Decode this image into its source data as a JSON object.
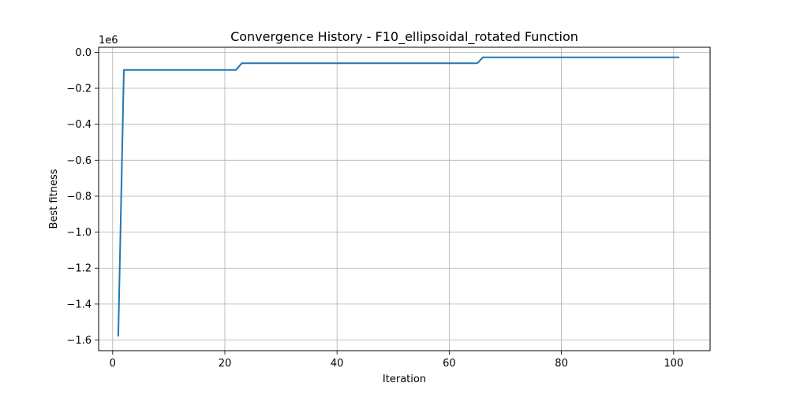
{
  "chart_data": {
    "type": "line",
    "title": "Convergence History - F10_ellipsoidal_rotated Function",
    "xlabel": "Iteration",
    "ylabel": "Best fitness",
    "y_offset_label": "1e6",
    "xlim": [
      -2.5,
      106.5
    ],
    "ylim": [
      -1.659,
      0.028
    ],
    "x_ticks": [
      0,
      20,
      40,
      60,
      80,
      100
    ],
    "y_ticks": [
      -1.6,
      -1.4,
      -1.2,
      -1.0,
      -0.8,
      -0.6,
      -0.4,
      -0.2,
      0.0
    ],
    "grid": true,
    "line_color": "#1f77b4",
    "series": [
      {
        "x": [
          1,
          2,
          22,
          23,
          65,
          66,
          101
        ],
        "y": [
          -1.58,
          -0.098,
          -0.098,
          -0.061,
          -0.061,
          -0.028,
          -0.028
        ]
      }
    ]
  }
}
